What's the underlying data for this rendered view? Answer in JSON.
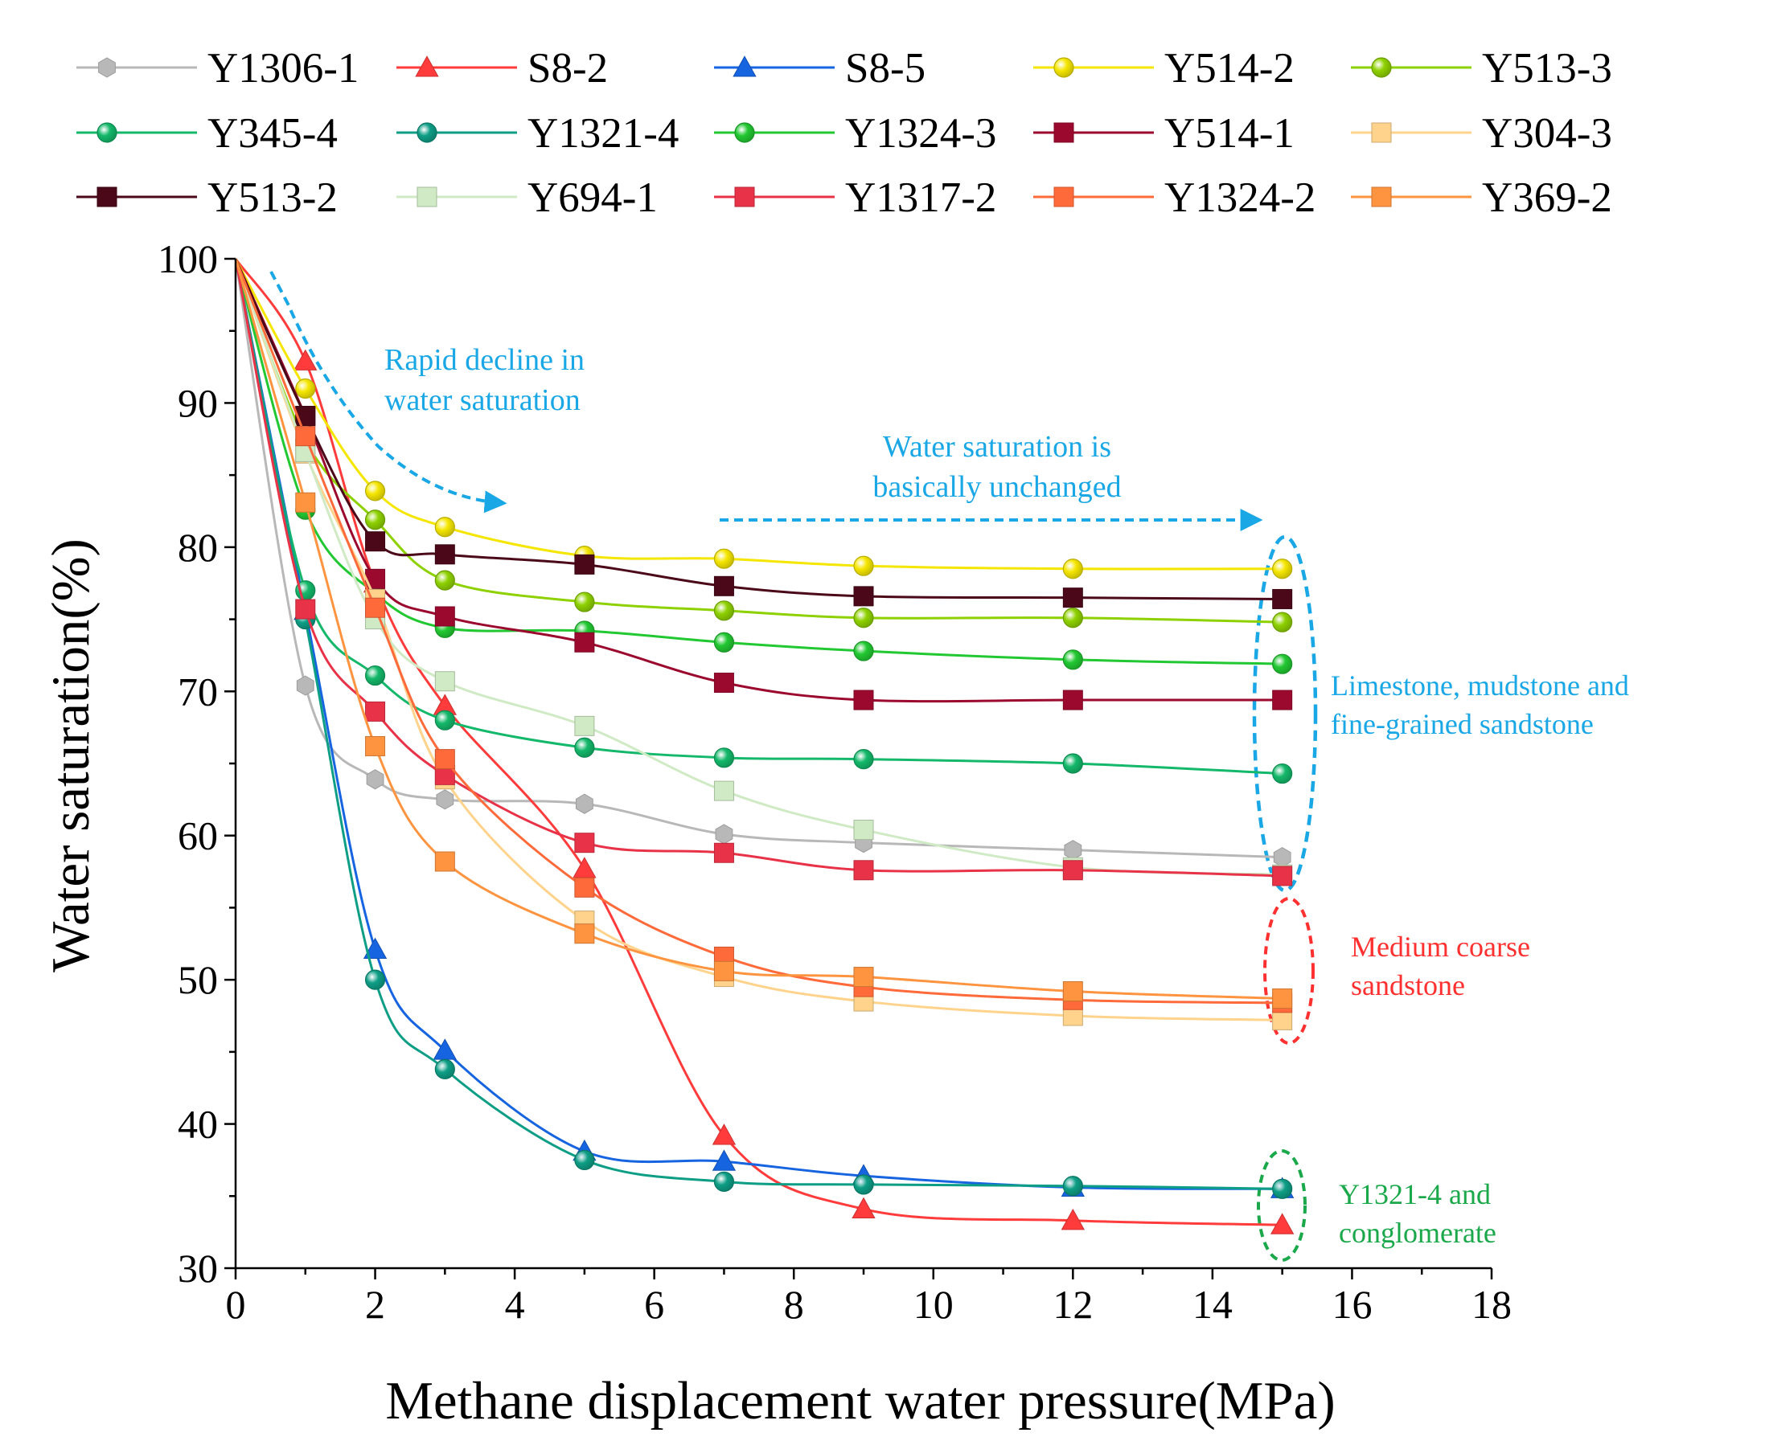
{
  "chart_data": {
    "type": "line",
    "title": "",
    "xlabel": "Methane displacement water pressure(MPa)",
    "ylabel": "Water saturation(%)",
    "xlim": [
      0,
      18
    ],
    "ylim": [
      30,
      100
    ],
    "x_ticks": [
      "0",
      "2",
      "4",
      "6",
      "8",
      "10",
      "12",
      "14",
      "16",
      "18"
    ],
    "y_ticks": [
      "30",
      "40",
      "50",
      "60",
      "70",
      "80",
      "90",
      "100"
    ],
    "x": [
      0,
      1,
      2,
      3,
      5,
      7,
      9,
      12,
      15
    ],
    "legend_position": "top",
    "series": [
      {
        "name": "Y1306-1",
        "color": "#b8b8b8",
        "marker": "hexagon",
        "values": [
          100,
          70.4,
          63.9,
          62.5,
          62.2,
          60.1,
          59.5,
          59.0,
          58.5
        ]
      },
      {
        "name": "S8-2",
        "color": "#ff3b3b",
        "marker": "triangle",
        "values": [
          100,
          92.9,
          77.5,
          69.0,
          57.7,
          39.2,
          34.1,
          33.3,
          33.0
        ]
      },
      {
        "name": "S8-5",
        "color": "#1664e0",
        "marker": "triangle",
        "values": [
          100,
          75.6,
          52.1,
          45.1,
          38.1,
          37.4,
          36.4,
          35.6,
          35.5
        ]
      },
      {
        "name": "Y514-2",
        "color": "#f5e600",
        "marker": "circle",
        "values": [
          100,
          91.0,
          83.9,
          81.4,
          79.4,
          79.2,
          78.7,
          78.5,
          78.5
        ]
      },
      {
        "name": "Y513-3",
        "color": "#8ed100",
        "marker": "circle",
        "values": [
          100,
          87.4,
          81.9,
          77.7,
          76.2,
          75.6,
          75.1,
          75.1,
          74.8
        ]
      },
      {
        "name": "Y345-4",
        "color": "#14b86a",
        "marker": "circle",
        "values": [
          100,
          77.0,
          71.1,
          68.0,
          66.1,
          65.4,
          65.3,
          65.0,
          64.3
        ]
      },
      {
        "name": "Y1321-4",
        "color": "#0e9e86",
        "marker": "circle",
        "values": [
          100,
          75.0,
          50.0,
          43.8,
          37.5,
          36.0,
          35.8,
          35.7,
          35.5
        ]
      },
      {
        "name": "Y1324-3",
        "color": "#22c832",
        "marker": "circle",
        "values": [
          100,
          82.6,
          76.8,
          74.4,
          74.2,
          73.4,
          72.8,
          72.2,
          71.9
        ]
      },
      {
        "name": "Y514-1",
        "color": "#9b0a2e",
        "marker": "square",
        "values": [
          100,
          89.1,
          77.8,
          75.2,
          73.4,
          70.6,
          69.4,
          69.4,
          69.4
        ]
      },
      {
        "name": "Y304-3",
        "color": "#ffd38c",
        "marker": "square",
        "values": [
          100,
          86.5,
          76.4,
          63.9,
          54.1,
          50.2,
          48.5,
          47.5,
          47.2
        ]
      },
      {
        "name": "Y513-2",
        "color": "#4a0818",
        "marker": "square",
        "values": [
          100,
          89.1,
          80.4,
          79.5,
          78.8,
          77.3,
          76.6,
          76.5,
          76.4
        ]
      },
      {
        "name": "Y694-1",
        "color": "#cfeac4",
        "marker": "square",
        "values": [
          100,
          86.6,
          75.0,
          70.7,
          67.6,
          63.1,
          60.4,
          57.8,
          57.3
        ]
      },
      {
        "name": "Y1317-2",
        "color": "#e83248",
        "marker": "square",
        "values": [
          100,
          75.7,
          68.6,
          64.2,
          59.5,
          58.8,
          57.6,
          57.6,
          57.2
        ]
      },
      {
        "name": "Y1324-2",
        "color": "#ff6a3a",
        "marker": "square",
        "values": [
          100,
          87.7,
          75.8,
          65.3,
          56.4,
          51.6,
          49.5,
          48.6,
          48.4
        ]
      },
      {
        "name": "Y369-2",
        "color": "#ff9440",
        "marker": "square",
        "values": [
          100,
          83.1,
          66.2,
          58.2,
          53.2,
          50.6,
          50.2,
          49.2,
          48.7
        ]
      }
    ],
    "annotations": [
      {
        "id": "rapid",
        "lines": [
          "Rapid decline in",
          "water saturation"
        ],
        "color": "#19a7e6"
      },
      {
        "id": "unchanged",
        "lines": [
          "Water saturation is",
          "basically unchanged"
        ],
        "color": "#19a7e6"
      },
      {
        "id": "limestone",
        "lines": [
          "Limestone, mudstone and",
          "fine-grained sandstone"
        ],
        "color": "#19a7e6"
      },
      {
        "id": "medium",
        "lines": [
          "Medium coarse",
          "sandstone"
        ],
        "color": "#ff3030"
      },
      {
        "id": "conglomerate",
        "lines": [
          "Y1321-4 and",
          "conglomerate"
        ],
        "color": "#1aa84a"
      }
    ]
  }
}
